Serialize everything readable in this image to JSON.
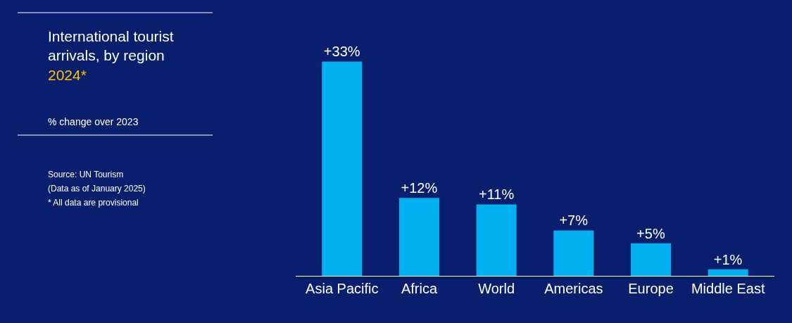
{
  "chart_data": {
    "type": "bar",
    "title": "International tourist\narrivals, by region\n2024*",
    "subtitle": "% change over 2023",
    "annotations": [
      "Source: UN Tourism",
      "(Data as of January 2025)",
      "* All data are provisional"
    ],
    "categories": [
      "Asia Pacific",
      "Africa",
      "World",
      "Americas",
      "Europe",
      "Middle East"
    ],
    "values": [
      33,
      12,
      11,
      7,
      5,
      1
    ],
    "value_labels": [
      "+33%",
      "+12%",
      "+11%",
      "+7%",
      "+5%",
      "+1%"
    ],
    "color": "#00b0f0",
    "grid": false,
    "legend": false
  }
}
